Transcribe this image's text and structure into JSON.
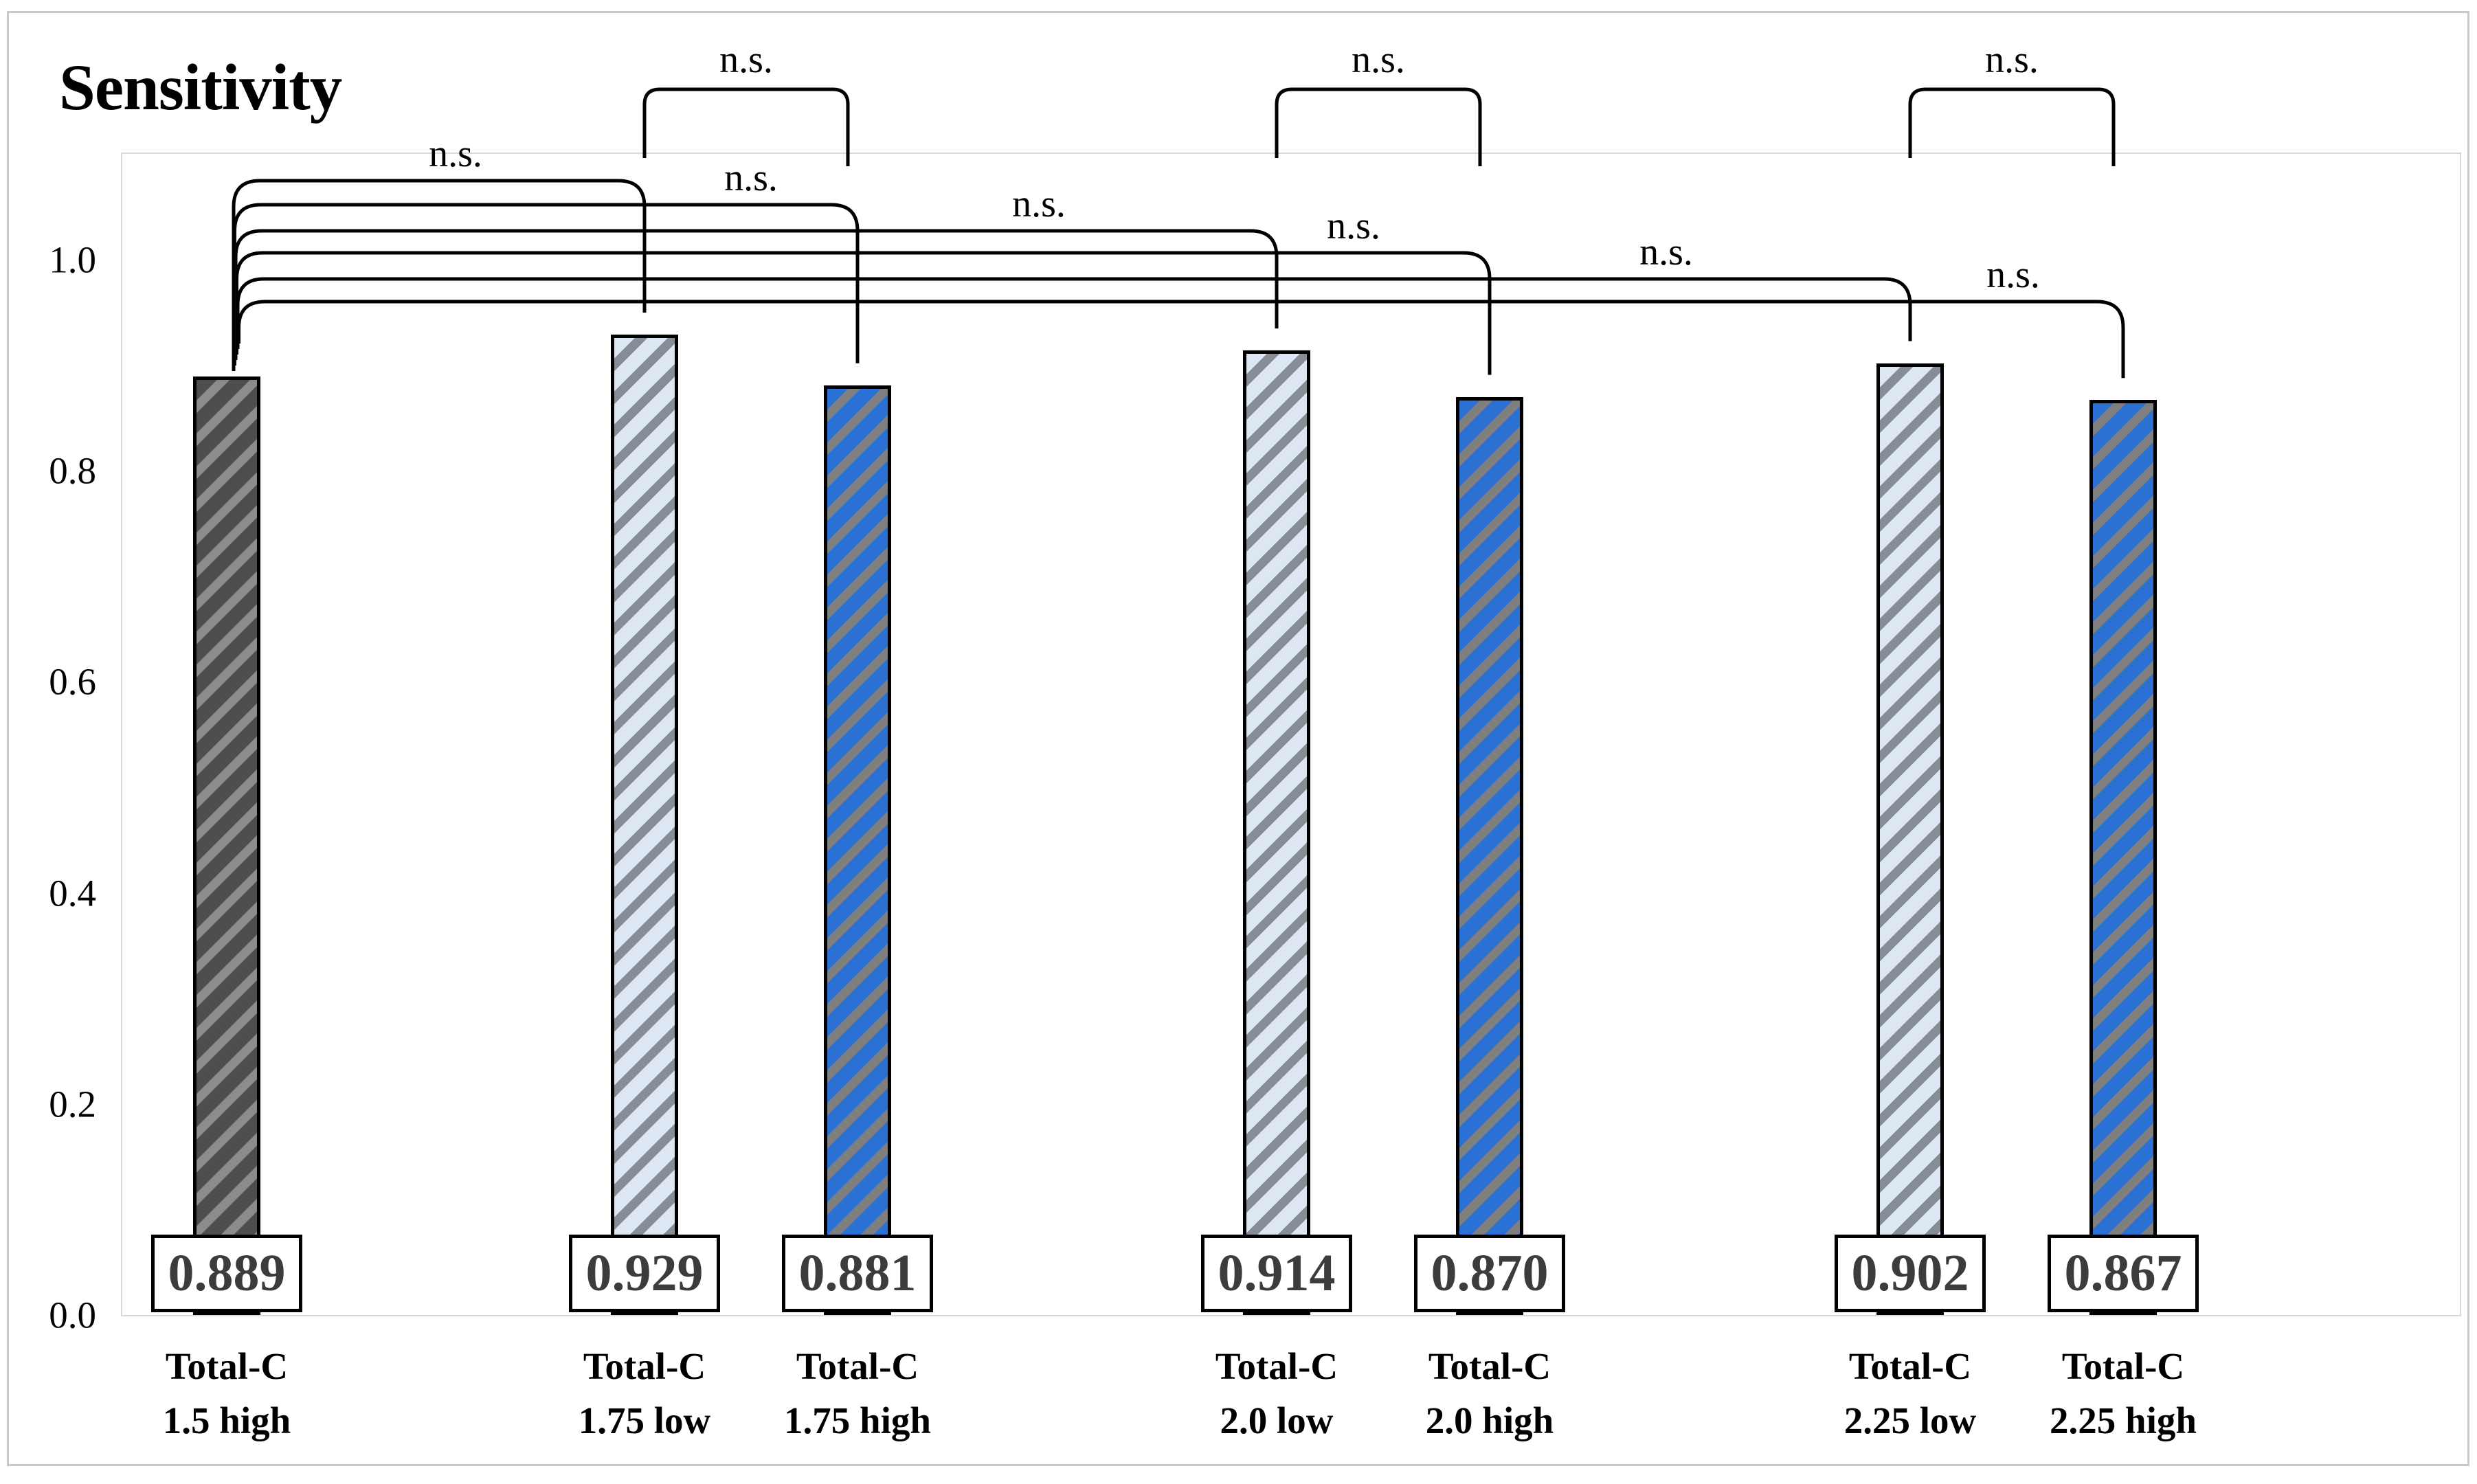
{
  "chart_data": {
    "type": "bar",
    "title": "Sensitivity",
    "categories": [
      "Total-C 1.5 high",
      "Total-C 1.75 low",
      "Total-C 1.75 high",
      "Total-C 2.0 low",
      "Total-C 2.0 high",
      "Total-C 2.25 low",
      "Total-C 2.25 high"
    ],
    "values": [
      0.889,
      0.929,
      0.881,
      0.914,
      0.87,
      0.902,
      0.867
    ],
    "value_labels": [
      "0.889",
      "0.929",
      "0.881",
      "0.914",
      "0.870",
      "0.902",
      "0.867"
    ],
    "xlabel": "",
    "ylabel": "",
    "ylim": [
      0,
      1.1
    ],
    "yticks": [
      0.0,
      0.2,
      0.4,
      0.6,
      0.8,
      1.0
    ],
    "ytick_labels": [
      "0.0",
      "0.2",
      "0.4",
      "0.6",
      "0.8",
      "1.0"
    ],
    "grid": false,
    "legend": "none",
    "bar_styles": [
      "dark-hatch",
      "light-hatch",
      "blue-hatch",
      "light-hatch",
      "blue-hatch",
      "light-hatch",
      "blue-hatch"
    ],
    "annotations": {
      "pair_brackets": [
        {
          "label": "n.s.",
          "from": 1,
          "to": 2
        },
        {
          "label": "n.s.",
          "from": 3,
          "to": 4
        },
        {
          "label": "n.s.",
          "from": 5,
          "to": 6
        }
      ],
      "nested_brackets": [
        {
          "label": "n.s.",
          "from": 0,
          "to": 1
        },
        {
          "label": "n.s.",
          "from": 0,
          "to": 2
        },
        {
          "label": "n.s.",
          "from": 0,
          "to": 3
        },
        {
          "label": "n.s.",
          "from": 0,
          "to": 4
        },
        {
          "label": "n.s.",
          "from": 0,
          "to": 5
        },
        {
          "label": "n.s.",
          "from": 0,
          "to": 6
        }
      ]
    },
    "colors": {
      "bar_dark_base": "#4e4e4e",
      "bar_dark_stripe": "#8c8c8c",
      "bar_low_base": "#dde7f3",
      "bar_low_stripe": "#868d96",
      "bar_high_base": "#2a71d3",
      "bar_high_stripe": "#7f7f7f",
      "bar_border": "#000000",
      "value_text": "#3c3c3c",
      "bracket": "#000000",
      "plot_border": "#d9d9d9",
      "figure_border": "#c9c9c9"
    }
  }
}
